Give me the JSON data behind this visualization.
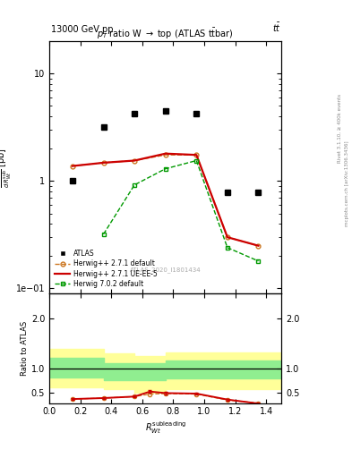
{
  "title_top_left": "13000 GeV pp",
  "title_top_right": "tt",
  "plot_title": "p$_T$ ratio W → top (ATLAS t̅t̅bar)",
  "watermark": "ATLAS_2020_I1801434",
  "rivet_label": "Rivet 3.1.10, ≥ 400k events",
  "mcplots_label": "mcplots.cern.ch [arXiv:1306.3436]",
  "atlas_x": [
    0.15,
    0.35,
    0.55,
    0.75,
    0.95,
    1.15,
    1.35
  ],
  "atlas_y": [
    1.0,
    3.2,
    4.2,
    4.5,
    4.2,
    0.78,
    0.78
  ],
  "hw271def_x": [
    0.15,
    0.35,
    0.55,
    0.75,
    0.95,
    1.15,
    1.35
  ],
  "hw271def_y": [
    1.38,
    1.48,
    1.55,
    1.75,
    1.75,
    0.3,
    0.25
  ],
  "hw271ueee5_x": [
    0.15,
    0.35,
    0.55,
    0.75,
    0.95,
    1.15,
    1.35
  ],
  "hw271ueee5_y": [
    1.38,
    1.48,
    1.55,
    1.8,
    1.75,
    0.3,
    0.25
  ],
  "hw702_x": [
    0.35,
    0.55,
    0.75,
    0.95,
    1.15,
    1.35
  ],
  "hw702_y": [
    0.32,
    0.92,
    1.3,
    1.55,
    0.24,
    0.18
  ],
  "ratio_ueee5_x": [
    0.15,
    0.35,
    0.55,
    0.65,
    0.75,
    0.95,
    1.15,
    1.35
  ],
  "ratio_ueee5_y": [
    0.38,
    0.4,
    0.43,
    0.53,
    0.5,
    0.49,
    0.37,
    0.29
  ],
  "ratio_ueee5_yerr": [
    0.02,
    0.02,
    0.02,
    0.03,
    0.02,
    0.02,
    0.02,
    0.02
  ],
  "ratio_def_x": [
    0.15,
    0.35,
    0.55,
    0.65,
    0.75,
    0.95,
    1.15,
    1.35
  ],
  "ratio_def_y": [
    0.38,
    0.4,
    0.43,
    0.48,
    0.49,
    0.48,
    0.36,
    0.3
  ],
  "green_band_edges": [
    0.0,
    0.35,
    0.35,
    0.75,
    0.75,
    1.5
  ],
  "green_band_top": [
    1.2,
    1.2,
    1.1,
    1.1,
    1.15,
    1.15
  ],
  "green_band_bot": [
    0.82,
    0.82,
    0.75,
    0.75,
    0.8,
    0.8
  ],
  "yellow_band_edges": [
    0.0,
    0.35,
    0.35,
    0.55,
    0.55,
    0.75,
    0.75,
    1.5
  ],
  "yellow_band_top": [
    1.38,
    1.38,
    1.3,
    1.3,
    1.25,
    1.25,
    1.32,
    1.32
  ],
  "yellow_band_bot": [
    0.62,
    0.62,
    0.58,
    0.58,
    0.5,
    0.5,
    0.58,
    0.58
  ],
  "colors": {
    "atlas": "#000000",
    "hw271_default": "#cc7722",
    "hw271_ueee5": "#cc0000",
    "hw702": "#009900",
    "green_band": "#90ee90",
    "yellow_band": "#ffff99"
  },
  "xlim": [
    0.0,
    1.5
  ],
  "ylim_main": [
    0.09,
    20.0
  ],
  "ylim_ratio": [
    0.3,
    2.5
  ],
  "ratio_yticks": [
    0.5,
    1.0,
    2.0
  ],
  "main_yticks": [
    0.1,
    1.0,
    10.0
  ]
}
